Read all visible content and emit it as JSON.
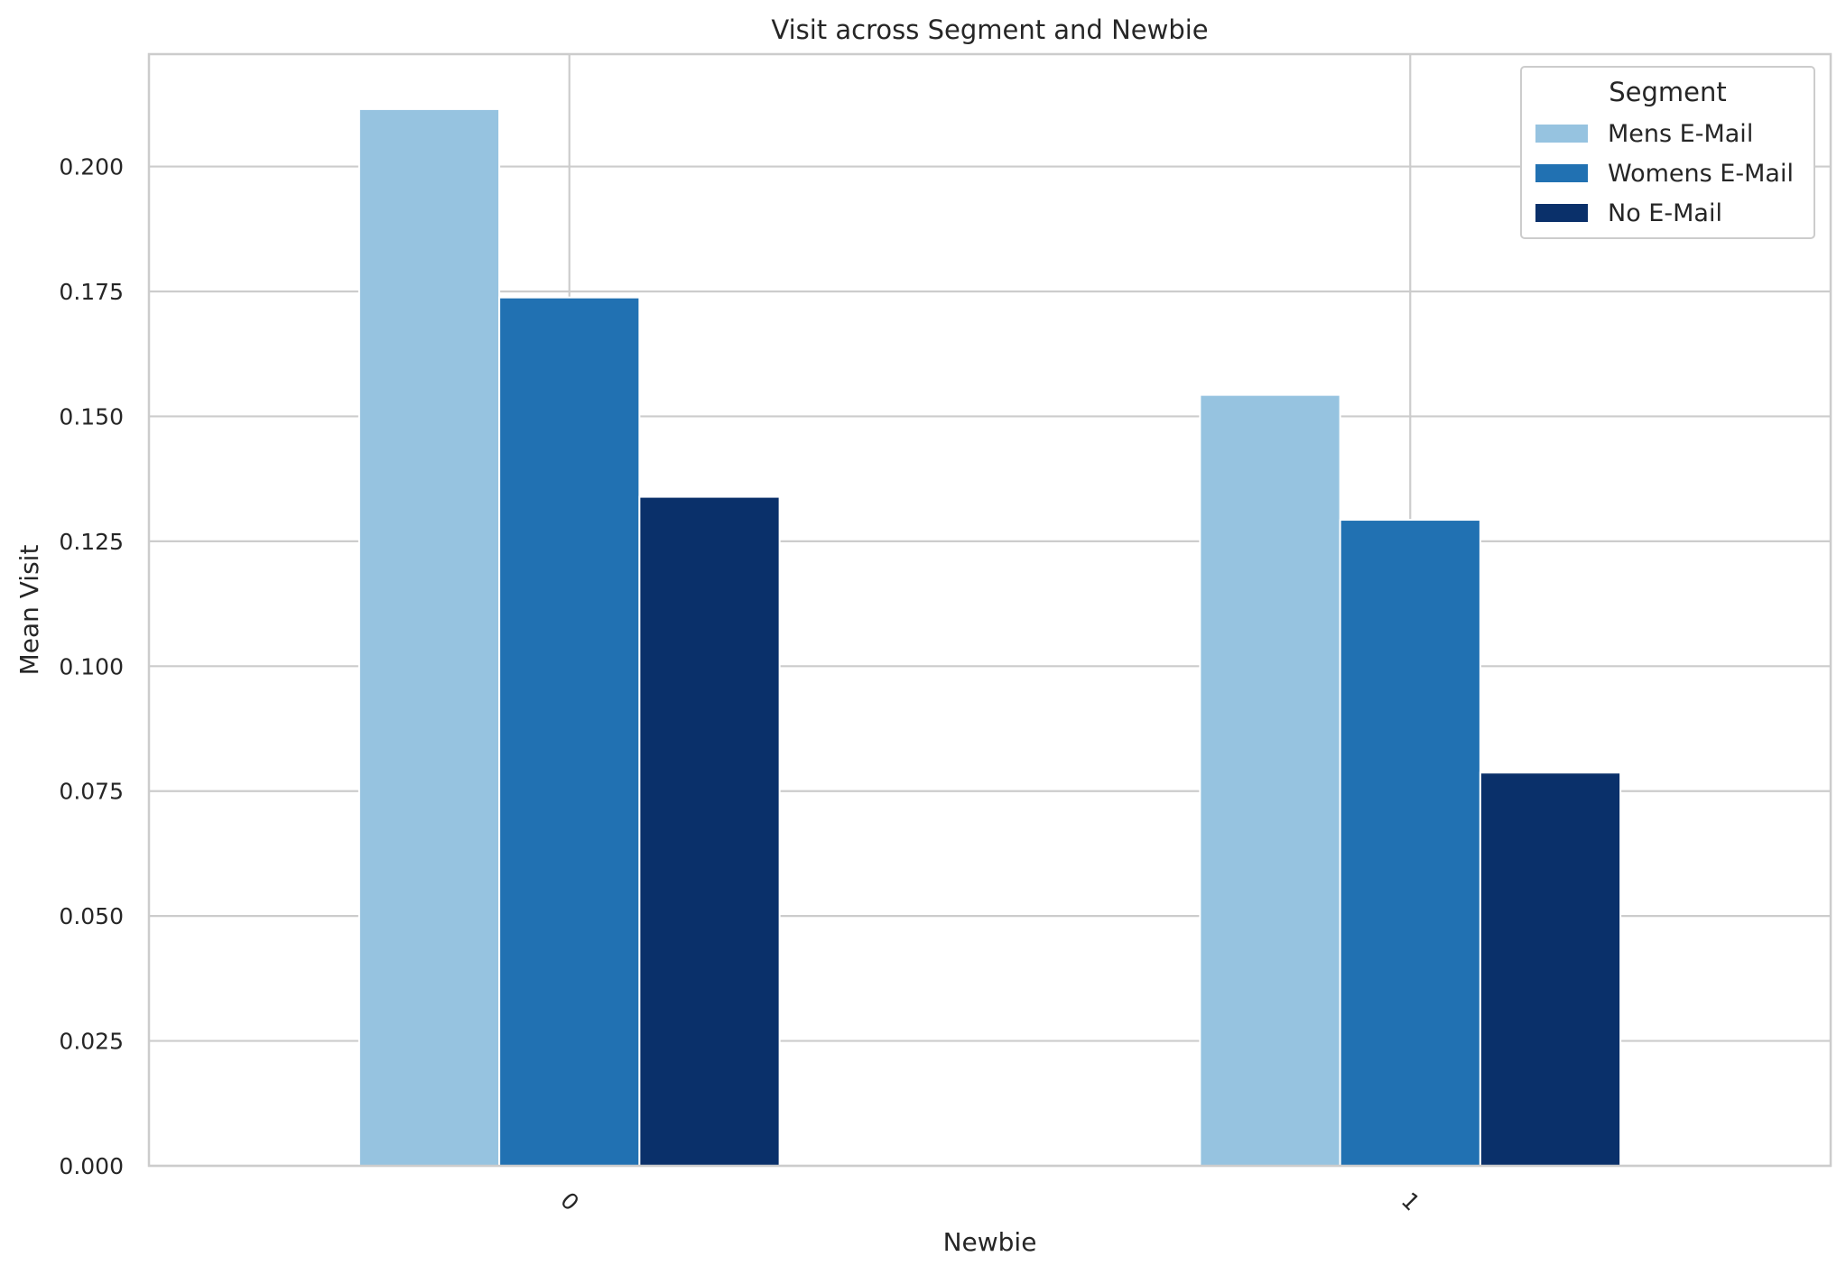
{
  "chart_data": {
    "type": "bar",
    "title": "Visit across Segment and Newbie",
    "xlabel": "Newbie",
    "ylabel": "Mean Visit",
    "categories": [
      "0",
      "1"
    ],
    "series": [
      {
        "name": "Mens E-Mail",
        "values": [
          0.2115,
          0.1543
        ],
        "color": "#96c3e0"
      },
      {
        "name": "Womens E-Mail",
        "values": [
          0.1738,
          0.1293
        ],
        "color": "#2171b2"
      },
      {
        "name": "No E-Mail",
        "values": [
          0.1339,
          0.0787
        ],
        "color": "#0a306a"
      }
    ],
    "ylim": [
      0,
      0.2225
    ],
    "yticks": [
      "0.000",
      "0.025",
      "0.050",
      "0.075",
      "0.100",
      "0.125",
      "0.150",
      "0.175",
      "0.200"
    ],
    "grid": true,
    "legend": {
      "title": "Segment",
      "position": "top-right"
    }
  }
}
